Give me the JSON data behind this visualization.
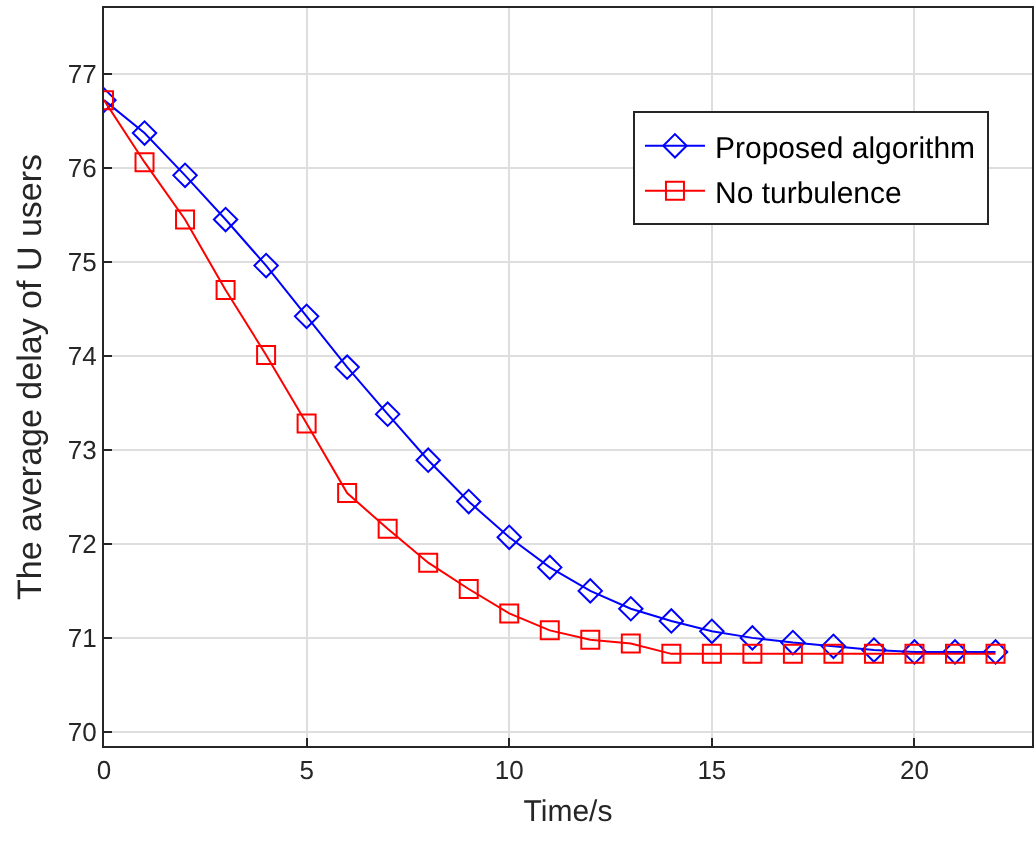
{
  "chart_data": {
    "type": "line",
    "xlabel": "Time/s",
    "ylabel": "The average delay of U users",
    "x": [
      0,
      1,
      2,
      3,
      4,
      5,
      6,
      7,
      8,
      9,
      10,
      11,
      12,
      13,
      14,
      15,
      16,
      17,
      18,
      19,
      20,
      21,
      22
    ],
    "series": [
      {
        "name": "Proposed algorithm",
        "color": "#0000ff",
        "marker": "diamond",
        "values": [
          76.72,
          76.37,
          75.92,
          75.45,
          74.96,
          74.42,
          73.88,
          73.38,
          72.89,
          72.45,
          72.07,
          71.75,
          71.5,
          71.31,
          71.18,
          71.07,
          71.0,
          70.95,
          70.91,
          70.87,
          70.85,
          70.85,
          70.85
        ]
      },
      {
        "name": "No turbulence",
        "color": "#ff0000",
        "marker": "square",
        "values": [
          76.72,
          76.06,
          75.45,
          74.7,
          74.01,
          73.28,
          72.54,
          72.16,
          71.8,
          71.52,
          71.26,
          71.08,
          70.98,
          70.94,
          70.83,
          70.83,
          70.83,
          70.83,
          70.83,
          70.83,
          70.83,
          70.83,
          70.83
        ]
      }
    ],
    "xlim": [
      0,
      22.9
    ],
    "xticks": [
      0,
      5,
      10,
      15,
      20
    ],
    "ylim": [
      69.85,
      77.7
    ],
    "yticks": [
      70,
      71,
      72,
      73,
      74,
      75,
      76,
      77
    ],
    "grid": true,
    "legend": "top right",
    "line_style": "solid"
  }
}
